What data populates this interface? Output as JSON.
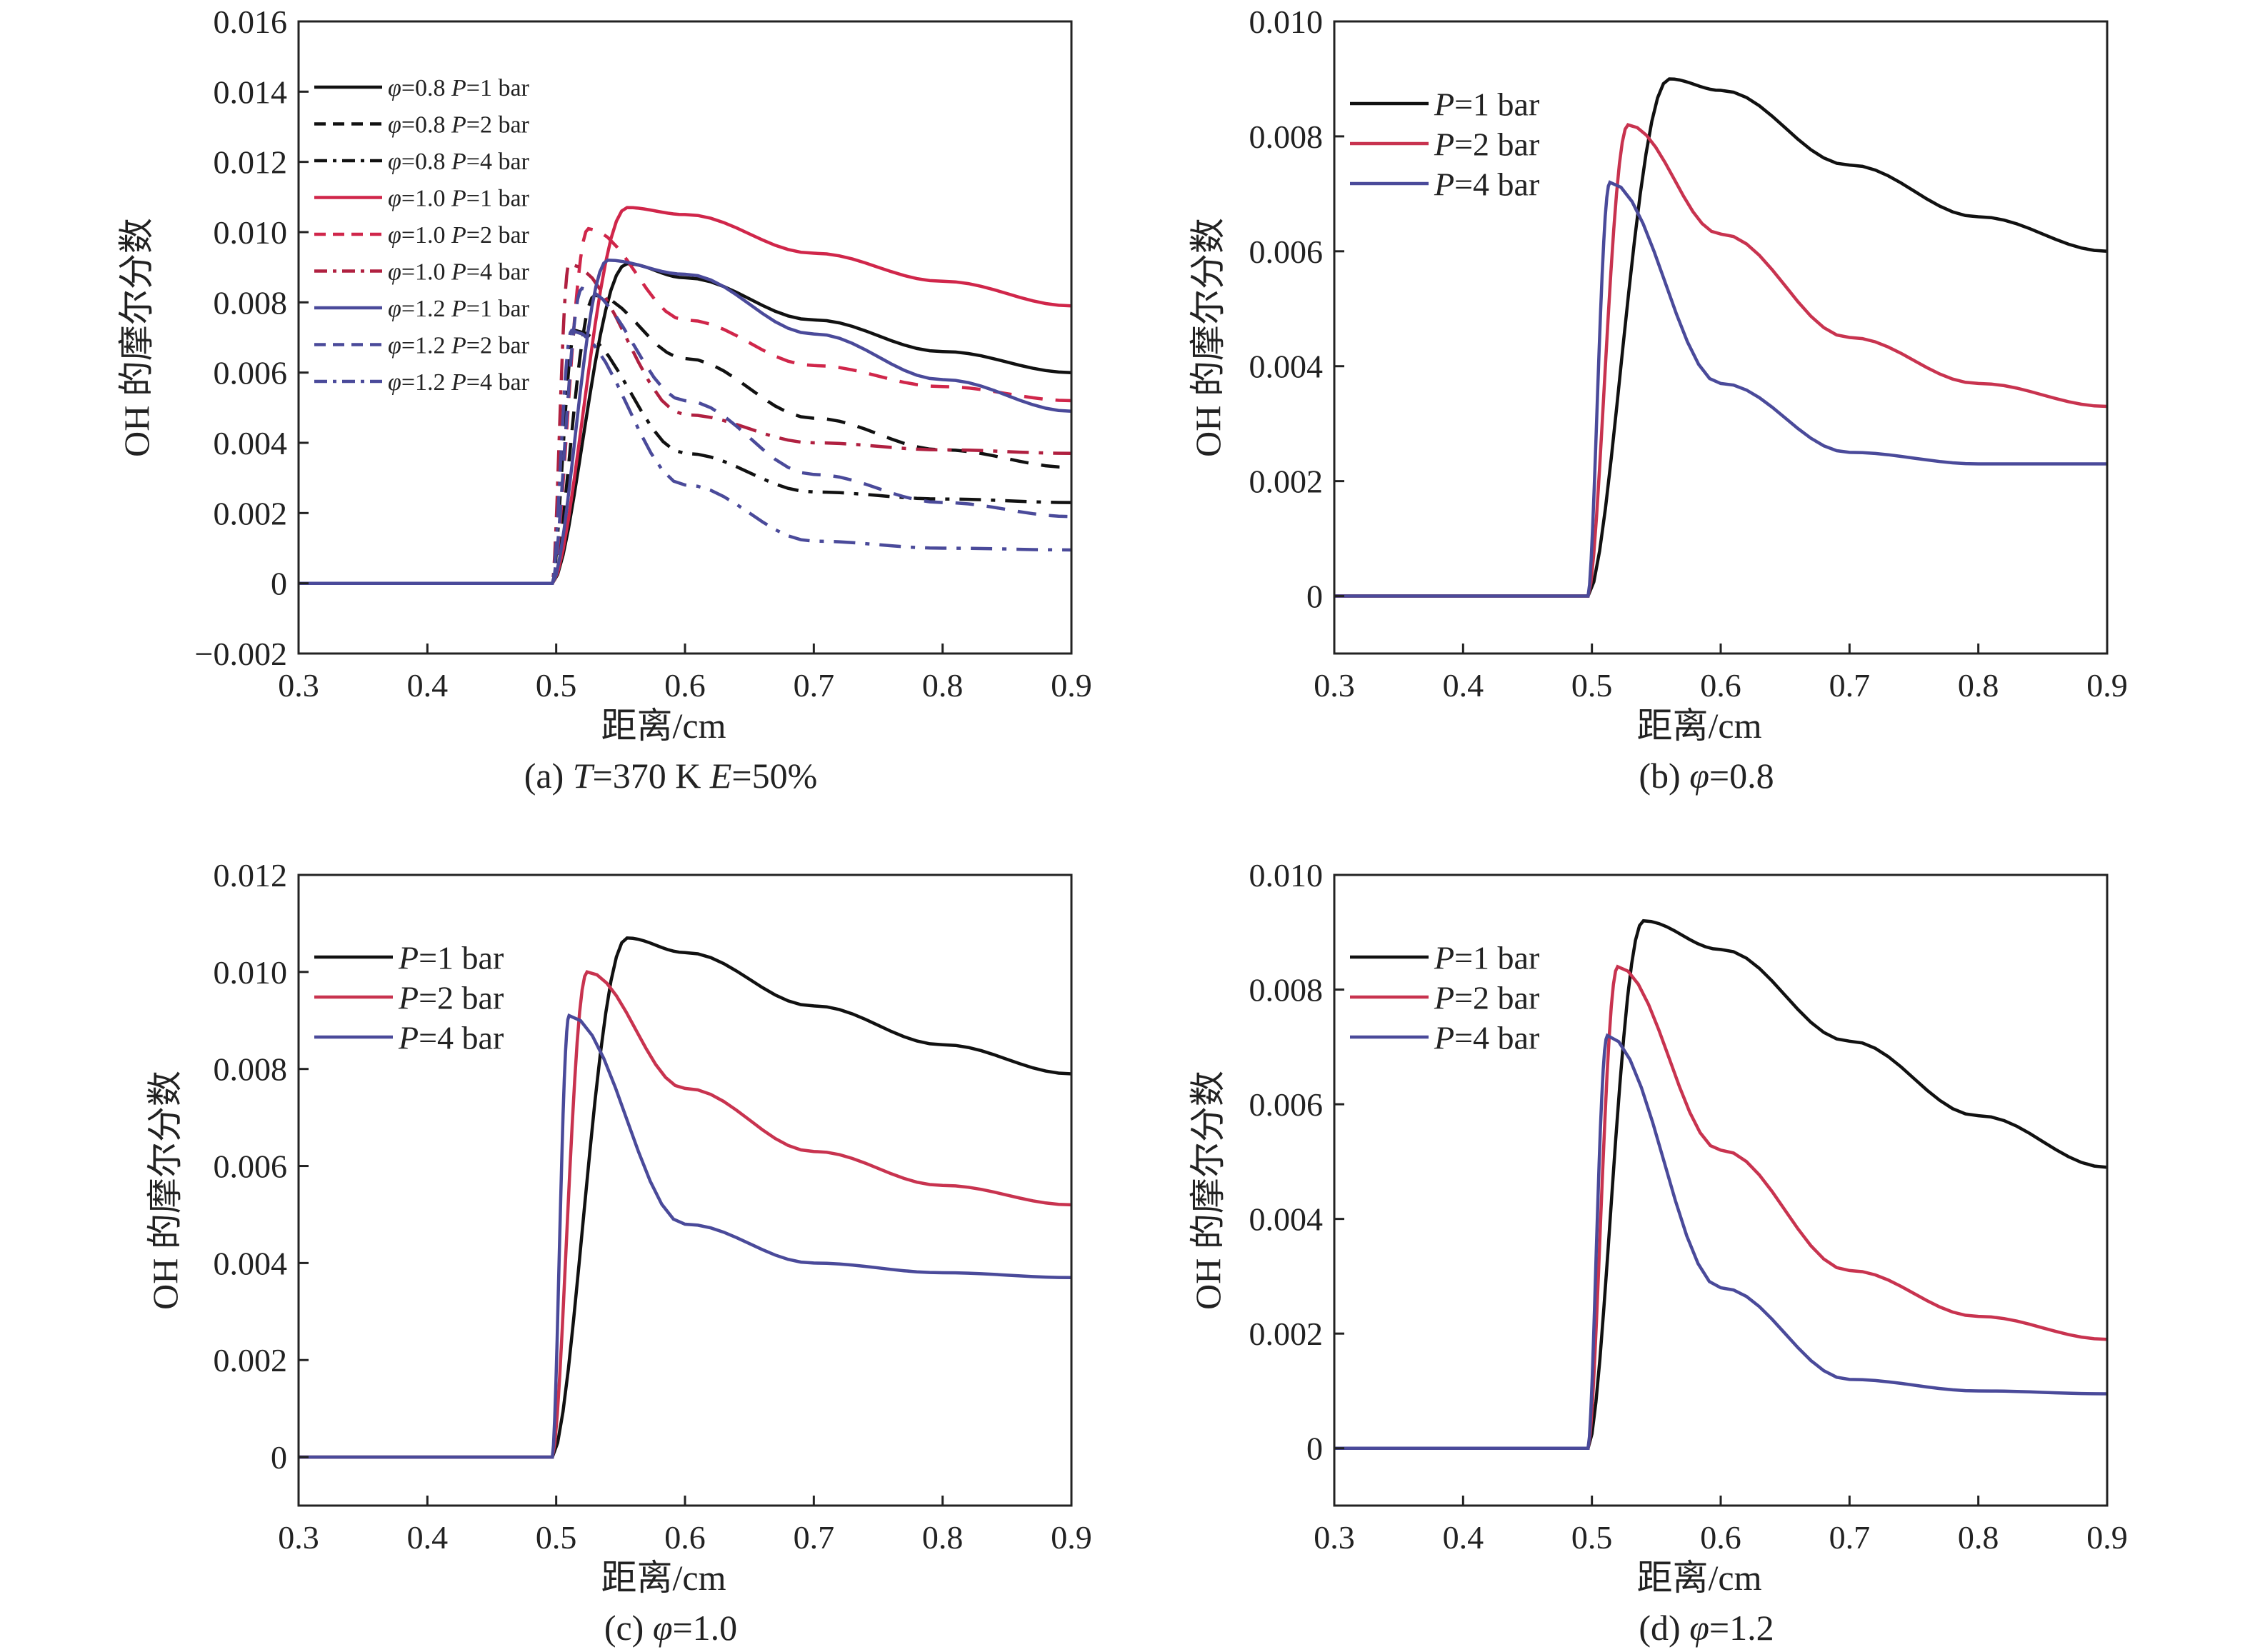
{
  "chart_data": [
    {
      "id": "a",
      "type": "line",
      "caption": [
        "(a) ",
        "T",
        "=370 K ",
        "E",
        "=50%"
      ],
      "caption_italic": [
        false,
        true,
        false,
        true,
        false
      ],
      "xlabel": "距离/cm",
      "ylabel": "OH 的摩尔分数",
      "xlim": [
        0.3,
        0.9
      ],
      "ylim": [
        -0.002,
        0.016
      ],
      "xticks": [
        "0.3",
        "0.4",
        "0.5",
        "0.6",
        "0.7",
        "0.8",
        "0.9"
      ],
      "yticks": [
        "−0.002",
        "0",
        "0.002",
        "0.004",
        "0.006",
        "0.008",
        "0.010",
        "0.012",
        "0.014",
        "0.016"
      ],
      "legend_position": "upper-left",
      "series": [
        {
          "name": "φ=0.8 P=1 bar",
          "phi": "0.8",
          "p": "1",
          "color": "#111111",
          "dash": "solid",
          "peak_x": 0.555,
          "peak_y": 0.0091,
          "x": [
            0.3,
            0.5,
            0.52,
            0.54,
            0.555,
            0.6,
            0.7,
            0.8,
            0.9
          ],
          "y": [
            0,
            0,
            0.005,
            0.0088,
            0.0091,
            0.0087,
            0.0075,
            0.0066,
            0.006
          ]
        },
        {
          "name": "φ=0.8 P=2 bar",
          "phi": "0.8",
          "p": "2",
          "color": "#111111",
          "dash": "dash",
          "peak_x": 0.53,
          "peak_y": 0.0082,
          "x": [
            0.3,
            0.5,
            0.53,
            0.6,
            0.7,
            0.8,
            0.9
          ],
          "y": [
            0,
            0,
            0.0082,
            0.0064,
            0.0047,
            0.0038,
            0.0033
          ]
        },
        {
          "name": "φ=0.8 P=4 bar",
          "phi": "0.8",
          "p": "4",
          "color": "#111111",
          "dash": "dashdot",
          "peak_x": 0.515,
          "peak_y": 0.0072,
          "x": [
            0.3,
            0.5,
            0.515,
            0.6,
            0.7,
            0.8,
            0.9
          ],
          "y": [
            0,
            0,
            0.0072,
            0.0037,
            0.0026,
            0.0024,
            0.0023
          ]
        },
        {
          "name": "φ=1.0 P=1 bar",
          "phi": "1.0",
          "p": "1",
          "color": "#d0264a",
          "dash": "solid",
          "peak_x": 0.555,
          "peak_y": 0.0107,
          "x": [
            0.3,
            0.5,
            0.555,
            0.6,
            0.7,
            0.8,
            0.9
          ],
          "y": [
            0,
            0,
            0.0107,
            0.0105,
            0.0094,
            0.0086,
            0.0079
          ]
        },
        {
          "name": "φ=1.0 P=2 bar",
          "phi": "1.0",
          "p": "2",
          "color": "#d0264a",
          "dash": "dash",
          "peak_x": 0.525,
          "peak_y": 0.0101,
          "x": [
            0.3,
            0.5,
            0.525,
            0.6,
            0.7,
            0.8,
            0.9
          ],
          "y": [
            0,
            0,
            0.0101,
            0.0075,
            0.0062,
            0.0056,
            0.0052
          ]
        },
        {
          "name": "φ=1.0 P=4 bar",
          "phi": "1.0",
          "p": "4",
          "color": "#b02040",
          "dash": "dashdot",
          "peak_x": 0.51,
          "peak_y": 0.0091,
          "x": [
            0.3,
            0.5,
            0.51,
            0.6,
            0.7,
            0.8,
            0.9
          ],
          "y": [
            0,
            0,
            0.0091,
            0.0048,
            0.004,
            0.0038,
            0.0037
          ]
        },
        {
          "name": "φ=1.2 P=1 bar",
          "phi": "1.2",
          "p": "1",
          "color": "#4a4a9a",
          "dash": "solid",
          "peak_x": 0.54,
          "peak_y": 0.0092,
          "x": [
            0.3,
            0.5,
            0.54,
            0.6,
            0.7,
            0.8,
            0.9
          ],
          "y": [
            0,
            0,
            0.0092,
            0.0088,
            0.0071,
            0.0058,
            0.0049
          ]
        },
        {
          "name": "φ=1.2 P=2 bar",
          "phi": "1.2",
          "p": "2",
          "color": "#4a4a9a",
          "dash": "dash",
          "peak_x": 0.52,
          "peak_y": 0.0084,
          "x": [
            0.3,
            0.5,
            0.52,
            0.6,
            0.7,
            0.8,
            0.9
          ],
          "y": [
            0,
            0,
            0.0084,
            0.0052,
            0.0031,
            0.0023,
            0.0019
          ]
        },
        {
          "name": "φ=1.2 P=4 bar",
          "phi": "1.2",
          "p": "4",
          "color": "#4a4a9a",
          "dash": "dashdot",
          "peak_x": 0.512,
          "peak_y": 0.0072,
          "x": [
            0.3,
            0.5,
            0.512,
            0.6,
            0.7,
            0.8,
            0.9
          ],
          "y": [
            0,
            0,
            0.0072,
            0.0028,
            0.0012,
            0.001,
            0.00095
          ]
        }
      ]
    },
    {
      "id": "b",
      "type": "line",
      "caption": [
        "(b) ",
        "φ",
        "=0.8"
      ],
      "caption_italic": [
        false,
        true,
        false
      ],
      "xlabel": "距离/cm",
      "ylabel": "OH 的摩尔分数",
      "xlim": [
        0.3,
        0.9
      ],
      "ylim": [
        -0.001,
        0.01
      ],
      "xticks": [
        "0.3",
        "0.4",
        "0.5",
        "0.6",
        "0.7",
        "0.8",
        "0.9"
      ],
      "yticks": [
        "0",
        "0.002",
        "0.004",
        "0.006",
        "0.008",
        "0.010"
      ],
      "legend_position": "upper-left",
      "series": [
        {
          "name": "P=1 bar",
          "p": "1",
          "color": "#111111",
          "dash": "solid",
          "peak_x": 0.56,
          "peak_y": 0.009,
          "x": [
            0.3,
            0.5,
            0.56,
            0.6,
            0.7,
            0.8,
            0.9
          ],
          "y": [
            0,
            0,
            0.009,
            0.0088,
            0.0075,
            0.0066,
            0.006
          ]
        },
        {
          "name": "P=2 bar",
          "p": "2",
          "color": "#c8334f",
          "dash": "solid",
          "peak_x": 0.528,
          "peak_y": 0.0082,
          "x": [
            0.3,
            0.5,
            0.528,
            0.6,
            0.7,
            0.8,
            0.9
          ],
          "y": [
            0,
            0,
            0.0082,
            0.0063,
            0.0045,
            0.0037,
            0.0033
          ]
        },
        {
          "name": "P=4 bar",
          "p": "4",
          "color": "#4a4a9a",
          "dash": "solid",
          "peak_x": 0.514,
          "peak_y": 0.0072,
          "x": [
            0.3,
            0.5,
            0.514,
            0.6,
            0.7,
            0.8,
            0.9
          ],
          "y": [
            0,
            0,
            0.0072,
            0.0037,
            0.0025,
            0.0023,
            0.0023
          ]
        }
      ]
    },
    {
      "id": "c",
      "type": "line",
      "caption": [
        "(c) ",
        "φ",
        "=1.0"
      ],
      "caption_italic": [
        false,
        true,
        false
      ],
      "xlabel": "距离/cm",
      "ylabel": "OH 的摩尔分数",
      "xlim": [
        0.3,
        0.9
      ],
      "ylim": [
        -0.001,
        0.012
      ],
      "xticks": [
        "0.3",
        "0.4",
        "0.5",
        "0.6",
        "0.7",
        "0.8",
        "0.9"
      ],
      "yticks": [
        "0",
        "0.002",
        "0.004",
        "0.006",
        "0.008",
        "0.010",
        "0.012"
      ],
      "legend_position": "upper-left",
      "series": [
        {
          "name": "P=1 bar",
          "p": "1",
          "color": "#111111",
          "dash": "solid",
          "peak_x": 0.555,
          "peak_y": 0.0107,
          "x": [
            0.3,
            0.5,
            0.555,
            0.6,
            0.7,
            0.8,
            0.9
          ],
          "y": [
            0,
            0,
            0.0107,
            0.0104,
            0.0093,
            0.0085,
            0.0079
          ]
        },
        {
          "name": "P=2 bar",
          "p": "2",
          "color": "#c8334f",
          "dash": "solid",
          "peak_x": 0.524,
          "peak_y": 0.01,
          "x": [
            0.3,
            0.5,
            0.524,
            0.6,
            0.7,
            0.8,
            0.9
          ],
          "y": [
            0,
            0,
            0.01,
            0.0076,
            0.0063,
            0.0056,
            0.0052
          ]
        },
        {
          "name": "P=4 bar",
          "p": "4",
          "color": "#4a4a9a",
          "dash": "solid",
          "peak_x": 0.51,
          "peak_y": 0.0091,
          "x": [
            0.3,
            0.5,
            0.51,
            0.6,
            0.7,
            0.8,
            0.9
          ],
          "y": [
            0,
            0,
            0.0091,
            0.0048,
            0.004,
            0.0038,
            0.0037
          ]
        }
      ]
    },
    {
      "id": "d",
      "type": "line",
      "caption": [
        "(d) ",
        "φ",
        "=1.2"
      ],
      "caption_italic": [
        false,
        true,
        false
      ],
      "xlabel": "距离/cm",
      "ylabel": "OH 的摩尔分数",
      "xlim": [
        0.3,
        0.9
      ],
      "ylim": [
        -0.001,
        0.01
      ],
      "xticks": [
        "0.3",
        "0.4",
        "0.5",
        "0.6",
        "0.7",
        "0.8",
        "0.9"
      ],
      "yticks": [
        "0",
        "0.002",
        "0.004",
        "0.006",
        "0.008",
        "0.010"
      ],
      "legend_position": "upper-left",
      "series": [
        {
          "name": "P=1 bar",
          "p": "1",
          "color": "#111111",
          "dash": "solid",
          "peak_x": 0.54,
          "peak_y": 0.0092,
          "x": [
            0.3,
            0.5,
            0.54,
            0.6,
            0.7,
            0.8,
            0.9
          ],
          "y": [
            0,
            0,
            0.0092,
            0.0087,
            0.0071,
            0.0058,
            0.0049
          ]
        },
        {
          "name": "P=2 bar",
          "p": "2",
          "color": "#c8334f",
          "dash": "solid",
          "peak_x": 0.52,
          "peak_y": 0.0084,
          "x": [
            0.3,
            0.5,
            0.52,
            0.6,
            0.7,
            0.8,
            0.9
          ],
          "y": [
            0,
            0,
            0.0084,
            0.0052,
            0.0031,
            0.0023,
            0.0019
          ]
        },
        {
          "name": "P=4 bar",
          "p": "4",
          "color": "#4a4a9a",
          "dash": "solid",
          "peak_x": 0.512,
          "peak_y": 0.0072,
          "x": [
            0.3,
            0.5,
            0.512,
            0.6,
            0.7,
            0.8,
            0.9
          ],
          "y": [
            0,
            0,
            0.0072,
            0.0028,
            0.0012,
            0.001,
            0.00095
          ]
        }
      ]
    }
  ]
}
